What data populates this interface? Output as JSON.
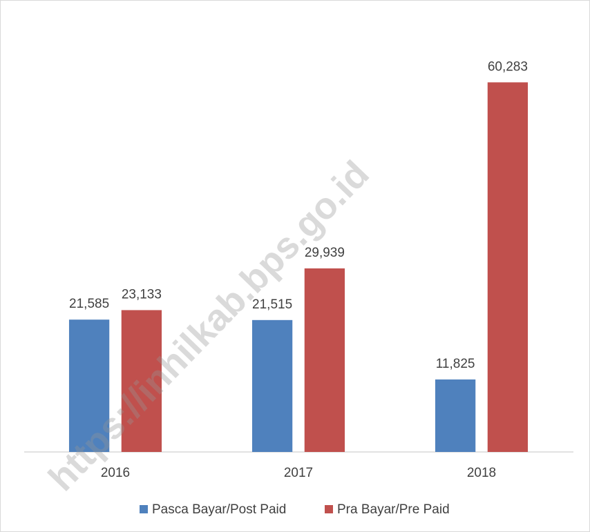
{
  "chart_data": {
    "type": "bar",
    "categories": [
      "2016",
      "2017",
      "2018"
    ],
    "series": [
      {
        "name": "Pasca Bayar/Post Paid",
        "color": "#4f81bd",
        "values": [
          21585,
          21515,
          11825
        ],
        "value_labels": [
          "21,585",
          "21,515",
          "11,825"
        ]
      },
      {
        "name": "Pra Bayar/Pre Paid",
        "color": "#c0504d",
        "values": [
          23133,
          29939,
          60283
        ],
        "value_labels": [
          "23,133",
          "29,939",
          "60,283"
        ]
      }
    ],
    "ylim": [
      0,
      70000
    ],
    "grid": false,
    "legend": "bottom",
    "watermark": "https://inhilkab.bps.go.id"
  }
}
